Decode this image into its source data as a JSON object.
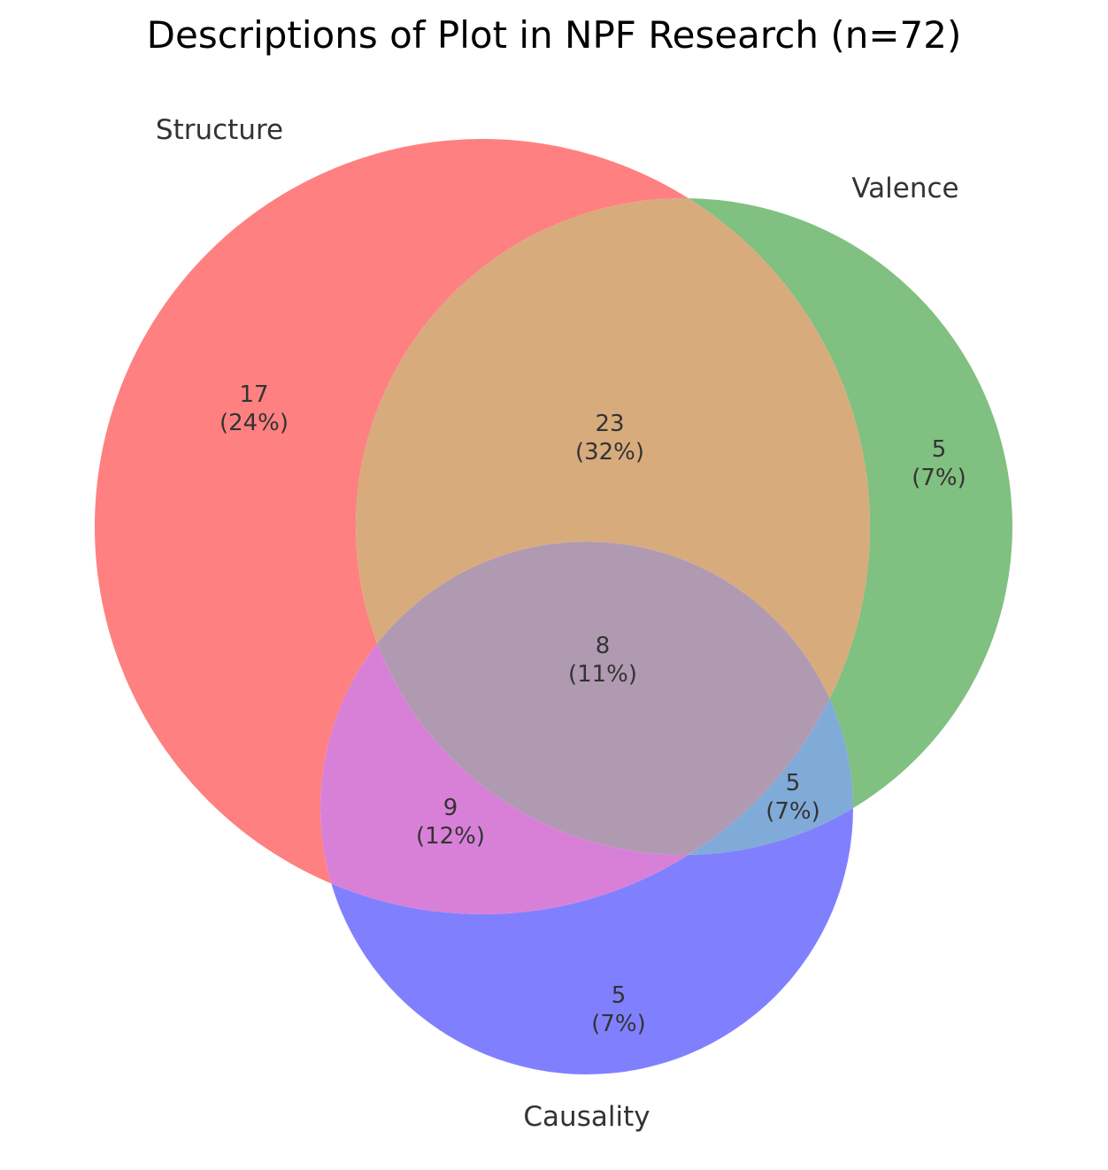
{
  "title": "Descriptions of Plot in NPF Research (n=72)",
  "sets": [
    {
      "id": "structure",
      "label": "Structure",
      "color": "#ff0000"
    },
    {
      "id": "valence",
      "label": "Valence",
      "color": "#008000"
    },
    {
      "id": "causality",
      "label": "Causality",
      "color": "#0000ff"
    }
  ],
  "regions": {
    "structure_only": {
      "count": "17",
      "percent": "(24%)"
    },
    "valence_only": {
      "count": "5",
      "percent": "(7%)"
    },
    "causality_only": {
      "count": "5",
      "percent": "(7%)"
    },
    "structure_valence": {
      "count": "23",
      "percent": "(32%)"
    },
    "structure_causality": {
      "count": "9",
      "percent": "(12%)"
    },
    "valence_causality": {
      "count": "5",
      "percent": "(7%)"
    },
    "all_three": {
      "count": "8",
      "percent": "(11%)"
    }
  },
  "colors": {
    "structure_only": "#ff8080",
    "valence_only": "#80c080",
    "causality_only": "#8080ff",
    "structure_valence": "#d8ab7d",
    "structure_causality": "#d880d8",
    "valence_causality": "#80aad8",
    "all_three": "#b09ab2"
  }
}
